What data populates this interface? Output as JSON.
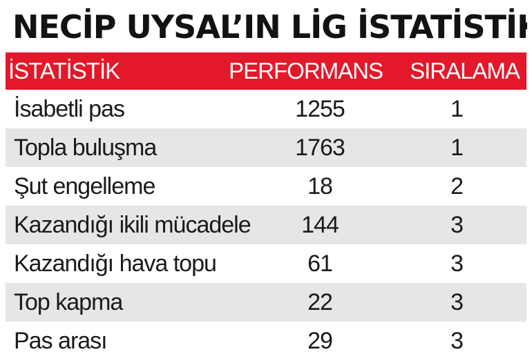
{
  "chart_data": {
    "type": "table",
    "title": "NECİP UYSAL’IN LİG İSTATİSTİKLERİ",
    "columns": [
      "İSTATİSTİK",
      "PERFORMANS",
      "SIRALAMA"
    ],
    "rows": [
      {
        "stat": "İsabetli pas",
        "performance": "1255",
        "rank": "1"
      },
      {
        "stat": "Topla buluşma",
        "performance": "1763",
        "rank": "1"
      },
      {
        "stat": "Şut engelleme",
        "performance": "18",
        "rank": "2"
      },
      {
        "stat": "Kazandığı ikili mücadele",
        "performance": "144",
        "rank": "3"
      },
      {
        "stat": "Kazandığı hava topu",
        "performance": "61",
        "rank": "3"
      },
      {
        "stat": "Top kapma",
        "performance": "22",
        "rank": "3"
      },
      {
        "stat": "Pas arası",
        "performance": "29",
        "rank": "3"
      }
    ]
  },
  "colors": {
    "header_bg": "#e3182b",
    "header_text": "#ffffff",
    "stripe": "#e6e6e8",
    "title_text": "#121212"
  }
}
